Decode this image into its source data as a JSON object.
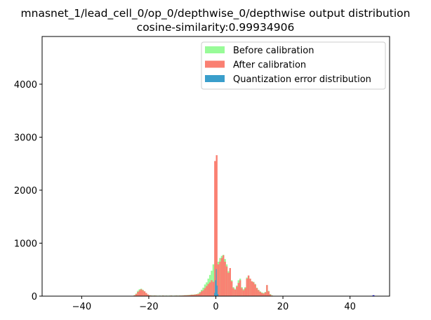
{
  "chart_data": {
    "type": "bar",
    "title": "mnasnet_1/lead_cell_0/op_0/depthwise_0/depthwise output distribution",
    "subtitle": "cosine-similarity:0.99934906",
    "xlabel": "",
    "ylabel": "",
    "xlim": [
      -51.8,
      51.8
    ],
    "ylim": [
      0,
      4900
    ],
    "xticks": [
      -40,
      -20,
      0,
      20,
      40
    ],
    "yticks": [
      0,
      1000,
      2000,
      3000,
      4000
    ],
    "grid": false,
    "legend_position": "top-right",
    "bin_width": 0.5,
    "bin_start": -25,
    "series": [
      {
        "name": "Before calibration",
        "color": "#98fb98",
        "values": [
          5,
          20,
          50,
          100,
          130,
          140,
          120,
          90,
          60,
          30,
          17,
          12,
          10,
          12,
          10,
          8,
          10,
          8,
          12,
          8,
          10,
          8,
          10,
          12,
          8,
          10,
          12,
          10,
          12,
          12,
          15,
          18,
          20,
          22,
          25,
          30,
          30,
          35,
          40,
          50,
          80,
          120,
          160,
          220,
          260,
          330,
          400,
          480,
          600,
          600,
          600,
          650,
          720,
          760,
          780,
          700,
          600,
          470,
          500,
          300,
          170,
          140,
          200,
          300,
          330,
          170,
          130,
          170,
          350,
          380,
          320,
          280,
          270,
          230,
          160,
          120,
          90,
          70,
          60,
          80,
          200,
          100,
          40,
          15
        ]
      },
      {
        "name": "After calibration",
        "color": "#fa8072",
        "values": [
          5,
          15,
          40,
          80,
          110,
          130,
          110,
          90,
          60,
          30,
          15,
          10,
          8,
          10,
          8,
          6,
          8,
          6,
          10,
          6,
          8,
          6,
          8,
          10,
          6,
          8,
          10,
          8,
          10,
          10,
          12,
          15,
          15,
          18,
          20,
          25,
          25,
          30,
          35,
          40,
          60,
          90,
          110,
          150,
          190,
          230,
          260,
          300,
          270,
          2550,
          2660,
          600,
          650,
          720,
          770,
          650,
          560,
          440,
          530,
          280,
          150,
          120,
          180,
          250,
          300,
          150,
          110,
          150,
          330,
          390,
          330,
          280,
          260,
          220,
          150,
          110,
          80,
          60,
          50,
          70,
          210,
          90,
          30,
          10
        ]
      },
      {
        "name": "Quantization error distribution",
        "color": "#3a9ecb",
        "bin_width": 0.25,
        "points": [
          [
            -0.5,
            60
          ],
          [
            -0.25,
            300
          ],
          [
            0,
            510
          ],
          [
            0.25,
            200
          ],
          [
            0.5,
            40
          ]
        ]
      }
    ],
    "marker": {
      "x": 47,
      "y": 20,
      "shape": "triangle",
      "color": "#0000ff"
    }
  }
}
